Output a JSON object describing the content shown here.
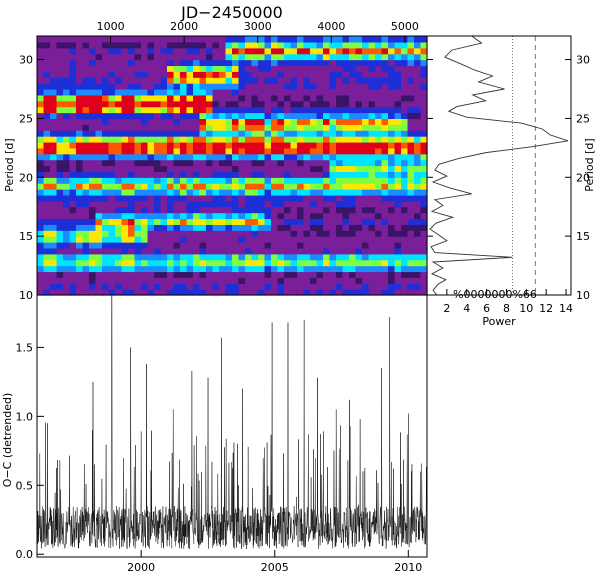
{
  "chart_data": [
    {
      "type": "heatmap",
      "title": "JD−2450000",
      "xlabel": "JD−2450000",
      "ylabel": "Period [d]",
      "xlim": [
        0,
        5300
      ],
      "ylim": [
        10,
        32
      ],
      "x_ticks": [
        1000,
        2000,
        3000,
        4000,
        5000
      ],
      "y_ticks": [
        10,
        15,
        20,
        25,
        30
      ],
      "colormap": [
        "#000000",
        "#3a1466",
        "#7a1e9a",
        "#1e2fd8",
        "#1a8cff",
        "#00e5ff",
        "#7fff40",
        "#ffe600",
        "#ff5a00",
        "#e0001a"
      ],
      "ridges": [
        {
          "period": 22.6,
          "x_start": 0,
          "x_end": 5300,
          "strength": 0.85
        },
        {
          "period": 26.3,
          "x_start": 0,
          "x_end": 2400,
          "strength": 0.9
        },
        {
          "period": 24.6,
          "x_start": 2200,
          "x_end": 5000,
          "strength": 0.55
        },
        {
          "period": 30.8,
          "x_start": 2600,
          "x_end": 5300,
          "strength": 0.6
        },
        {
          "period": 28.7,
          "x_start": 1800,
          "x_end": 2700,
          "strength": 0.6
        },
        {
          "period": 19.2,
          "x_start": 0,
          "x_end": 5300,
          "strength": 0.45
        },
        {
          "period": 16.3,
          "x_start": 800,
          "x_end": 3200,
          "strength": 0.4
        },
        {
          "period": 15.1,
          "x_start": 0,
          "x_end": 1500,
          "strength": 0.45
        },
        {
          "period": 12.8,
          "x_start": 0,
          "x_end": 5300,
          "strength": 0.35
        },
        {
          "period": 20.8,
          "x_start": 4000,
          "x_end": 5300,
          "strength": 0.45
        }
      ],
      "hot_spots": [
        {
          "x": 1550,
          "period": 26.1,
          "value": 1.0
        },
        {
          "x": 1780,
          "period": 22.8,
          "value": 0.95
        },
        {
          "x": 3900,
          "period": 22.5,
          "value": 0.95
        },
        {
          "x": 4150,
          "period": 22.4,
          "value": 1.0
        },
        {
          "x": 600,
          "period": 22.9,
          "value": 0.8
        }
      ]
    },
    {
      "type": "line",
      "xlabel": "Power",
      "ylabel": "Period [d]",
      "xlim": [
        0,
        14.5
      ],
      "ylim": [
        10,
        32
      ],
      "x_ticks": [
        2,
        4,
        6,
        8,
        10,
        12,
        14
      ],
      "y_ticks": [
        10,
        15,
        20,
        25,
        30
      ],
      "threshold_text": "%0000000%66",
      "threshold_lines": [
        {
          "power": 8.6,
          "style": "dotted"
        },
        {
          "power": 10.9,
          "style": "dashed"
        }
      ],
      "series": [
        {
          "period": [
            32,
            31.4,
            30.8,
            30.2,
            29.6,
            29.1,
            28.6,
            28.1,
            27.5,
            27.0,
            26.5,
            26.0,
            25.6,
            25.1,
            24.6,
            24.1,
            23.6,
            23.1,
            22.6,
            22.1,
            21.6,
            21.1,
            20.6,
            20.1,
            19.6,
            19.1,
            18.6,
            18.1,
            17.6,
            17.1,
            16.6,
            16.1,
            15.6,
            15.1,
            14.6,
            14.1,
            13.6,
            13.2,
            12.8,
            12.3,
            11.8,
            11.3,
            10.9,
            10.4,
            10.0
          ],
          "power": [
            4.5,
            5.5,
            2.5,
            1.8,
            3.5,
            4.8,
            6.6,
            5.2,
            7.8,
            4.6,
            5.9,
            3.0,
            2.2,
            4.0,
            9.5,
            11.6,
            12.4,
            14.2,
            10.6,
            6.0,
            3.2,
            1.2,
            0.8,
            2.0,
            0.6,
            2.3,
            4.5,
            0.8,
            1.6,
            0.5,
            2.6,
            0.9,
            0.3,
            1.2,
            2.0,
            0.4,
            0.8,
            8.6,
            0.6,
            1.6,
            0.5,
            1.9,
            1.1,
            0.6,
            1.0
          ]
        }
      ]
    },
    {
      "type": "line",
      "xlabel": "",
      "ylabel": "O−C (detrended)",
      "xlim": [
        1996.1,
        2010.7
      ],
      "ylim": [
        -0.02,
        1.88
      ],
      "x_ticks": [
        2000,
        2005,
        2010
      ],
      "y_ticks": [
        0.0,
        0.5,
        1.0,
        1.5
      ],
      "base_level": 0.25,
      "spikes": [
        {
          "x": 1998.2,
          "y": 1.25
        },
        {
          "x": 1998.9,
          "y": 1.88
        },
        {
          "x": 1999.6,
          "y": 1.5
        },
        {
          "x": 2000.2,
          "y": 1.38
        },
        {
          "x": 2001.2,
          "y": 1.05
        },
        {
          "x": 2001.9,
          "y": 1.33
        },
        {
          "x": 2002.5,
          "y": 1.28
        },
        {
          "x": 2003.0,
          "y": 1.57
        },
        {
          "x": 2003.8,
          "y": 1.2
        },
        {
          "x": 2004.9,
          "y": 1.68
        },
        {
          "x": 2005.5,
          "y": 1.68
        },
        {
          "x": 2006.1,
          "y": 1.7
        },
        {
          "x": 2006.6,
          "y": 1.28
        },
        {
          "x": 2007.3,
          "y": 1.05
        },
        {
          "x": 2008.2,
          "y": 0.98
        },
        {
          "x": 2009.0,
          "y": 1.35
        },
        {
          "x": 2009.3,
          "y": 1.72
        },
        {
          "x": 2010.0,
          "y": 1.02
        },
        {
          "x": 1996.5,
          "y": 0.95
        },
        {
          "x": 2007.8,
          "y": 1.12
        }
      ]
    }
  ]
}
